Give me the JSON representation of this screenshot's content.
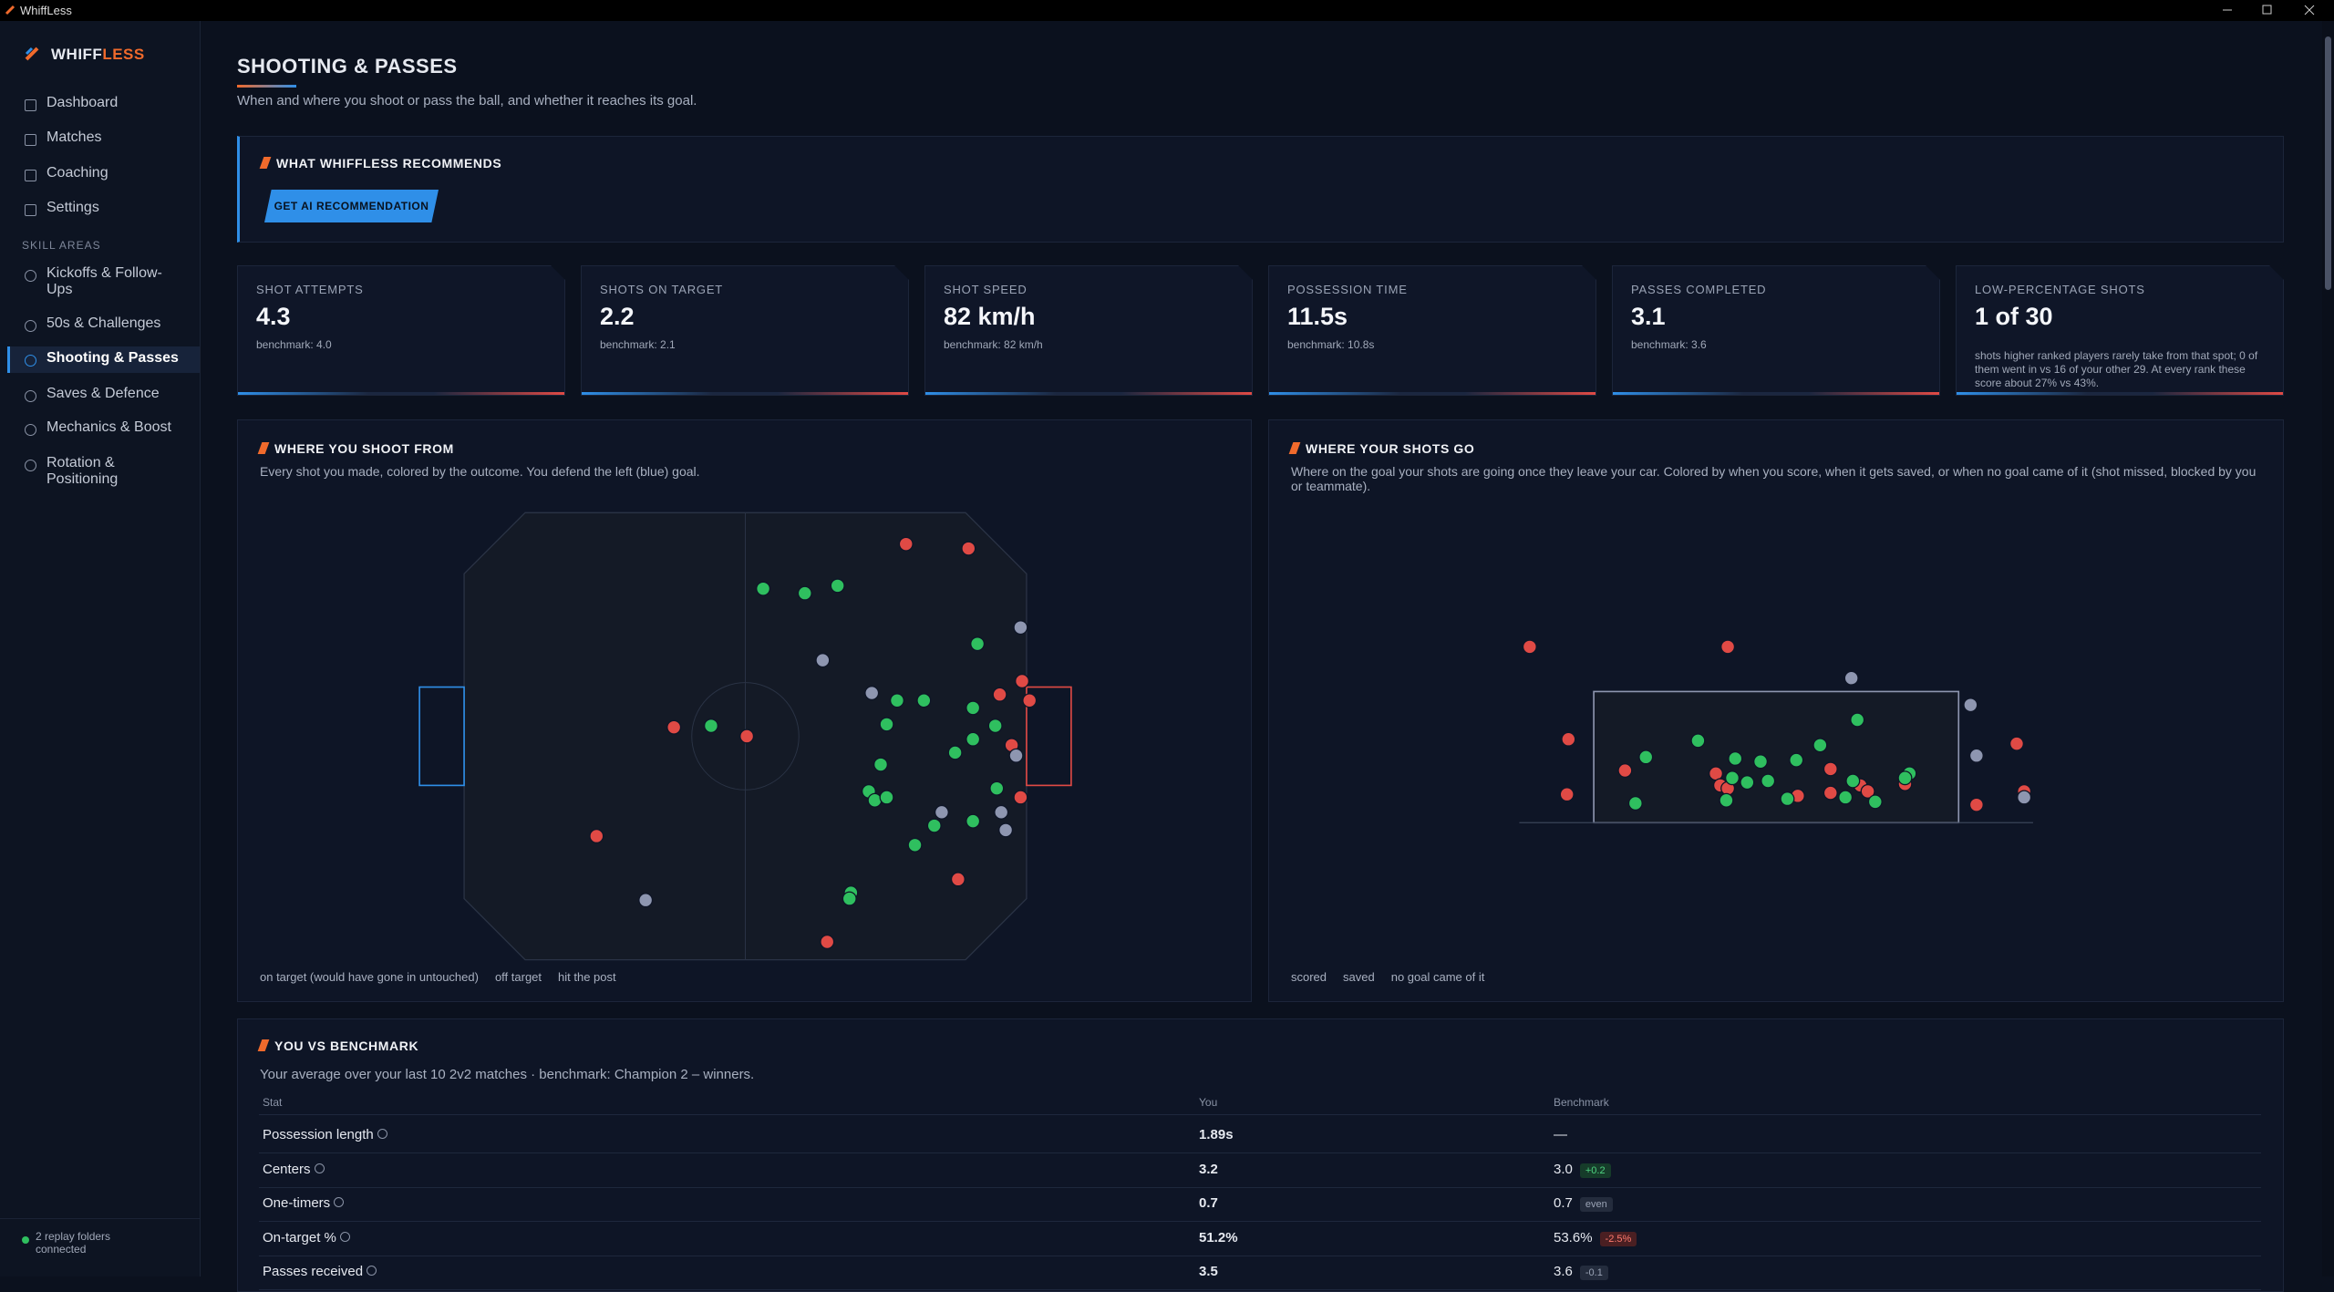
{
  "window": {
    "title": "WhiffLess"
  },
  "sidebar": {
    "logo_main": "WHIFF",
    "logo_accent": "LESS",
    "nav": [
      "Dashboard",
      "Matches",
      "Coaching",
      "Settings"
    ],
    "section_label": "SKILL AREAS",
    "skill_areas": [
      "Kickoffs & Follow-Ups",
      "50s & Challenges",
      "Shooting & Passes",
      "Saves & Defence",
      "Mechanics & Boost",
      "Rotation & Positioning"
    ],
    "status": "2 replay folders connected"
  },
  "header": {
    "title": "SHOOTING & PASSES",
    "subtitle": "When and where you shoot or pass the ball, and whether it reaches its goal."
  },
  "recommendation": {
    "heading": "WHAT WHIFFLESS RECOMMENDS",
    "button": "GET AI RECOMMENDATION"
  },
  "stat_cards": [
    {
      "label": "SHOT ATTEMPTS",
      "value": "4.3",
      "benchmark": "benchmark: 4.0"
    },
    {
      "label": "SHOTS ON TARGET",
      "value": "2.2",
      "benchmark": "benchmark: 2.1"
    },
    {
      "label": "SHOT SPEED",
      "value": "82 km/h",
      "benchmark": "benchmark: 82 km/h"
    },
    {
      "label": "POSSESSION TIME",
      "value": "11.5s",
      "benchmark": "benchmark: 10.8s"
    },
    {
      "label": "PASSES COMPLETED",
      "value": "3.1",
      "benchmark": "benchmark: 3.6"
    },
    {
      "label": "LOW-PERCENTAGE SHOTS",
      "value": "1 of 30",
      "note": "shots higher ranked players rarely take from that spot; 0 of them went in vs 16 of your other 29. At every rank these score about 27% vs 43%."
    }
  ],
  "shot_map": {
    "heading": "WHERE YOU SHOOT FROM",
    "description": "Every shot you made, colored by the outcome. You defend the left (blue) goal.",
    "legend": [
      {
        "label": "on target (would have gone in untouched)",
        "color": "#2fbf5f"
      },
      {
        "label": "off target",
        "color": "#e04a45"
      },
      {
        "label": "hit the post",
        "color": "#8e96b0"
      }
    ]
  },
  "goal_map": {
    "heading": "WHERE YOUR SHOTS GO",
    "description": "Where on the goal your shots are going once they leave your car. Colored by when you score, when it gets saved, or when no goal came of it (shot missed, blocked by you or teammate).",
    "legend": [
      {
        "label": "scored",
        "color": "#2fbf5f"
      },
      {
        "label": "saved",
        "color": "#e04a45"
      },
      {
        "label": "no goal came of it",
        "color": "#8e96b0"
      }
    ]
  },
  "benchmark_table": {
    "heading": "YOU VS BENCHMARK",
    "description": "Your average over your last 10 2v2 matches · benchmark: Champion 2 – winners.",
    "columns": [
      "Stat",
      "You",
      "Benchmark"
    ],
    "rows": [
      {
        "stat": "Possession length",
        "you": "1.89s",
        "benchmark": "—"
      },
      {
        "stat": "Centers",
        "you": "3.2",
        "benchmark": "3.0",
        "delta": "+0.2",
        "tone": "positive"
      },
      {
        "stat": "One-timers",
        "you": "0.7",
        "benchmark": "0.7",
        "delta": "even",
        "tone": "neutral"
      },
      {
        "stat": "On-target %",
        "you": "51.2%",
        "benchmark": "53.6%",
        "delta": "-2.5%",
        "tone": "negative"
      },
      {
        "stat": "Passes received",
        "you": "3.5",
        "benchmark": "3.6",
        "delta": "-0.1",
        "tone": "neutral"
      }
    ]
  }
}
